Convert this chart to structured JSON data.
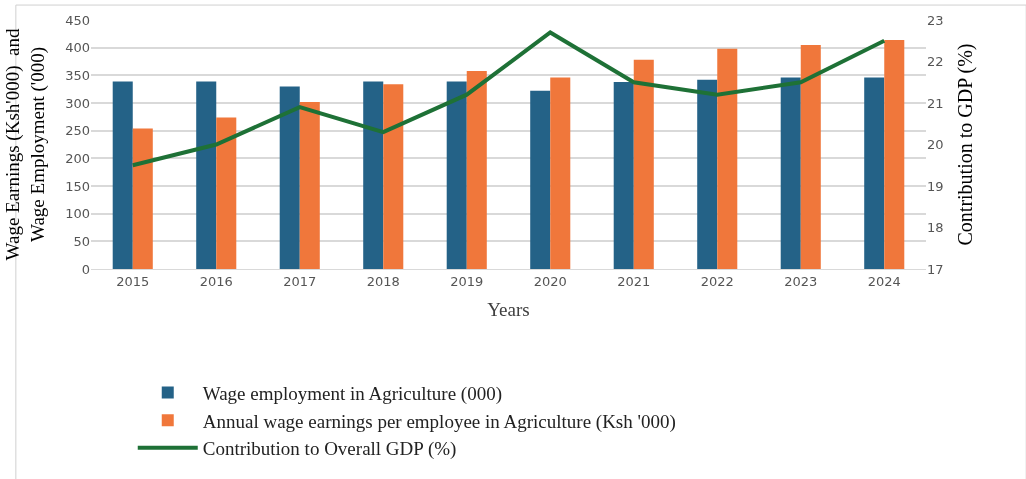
{
  "chart_data": {
    "type": "bar",
    "xlabel": "Years",
    "ylabel": "Wage Earnings (Ksh'000)  and Wage Employment ('000)",
    "y2label": "Contribution to GDP (%)",
    "categories": [
      "2015",
      "2016",
      "2017",
      "2018",
      "2019",
      "2020",
      "2021",
      "2022",
      "2023",
      "2024"
    ],
    "series": [
      {
        "name": "Wage employment in Agriculture (000)",
        "color": "#246287",
        "values": [
          339,
          339,
          330,
          339,
          339,
          322,
          338,
          342,
          346,
          346
        ]
      },
      {
        "name": "Annual wage earnings per employee in Agriculture (Ksh '000)",
        "color": "#f0773b",
        "values": [
          254,
          274,
          302,
          334,
          358,
          346,
          378,
          398,
          405,
          414
        ]
      },
      {
        "name": "Contribution to Overall GDP (%)",
        "type": "line",
        "axis": "y2",
        "color": "#1e7136",
        "values": [
          19.5,
          20.0,
          20.9,
          20.3,
          21.2,
          22.7,
          21.5,
          21.2,
          21.5,
          22.5
        ]
      }
    ],
    "ylim": [
      0,
      450
    ],
    "yticks": [
      0,
      50,
      100,
      150,
      200,
      250,
      300,
      350,
      400,
      450
    ],
    "y2lim": [
      17,
      23
    ],
    "y2ticks": [
      17,
      18,
      19,
      20,
      21,
      22,
      23
    ],
    "grid": "y",
    "legend": "bottom left",
    "marker": "none",
    "line_style": "solid"
  }
}
